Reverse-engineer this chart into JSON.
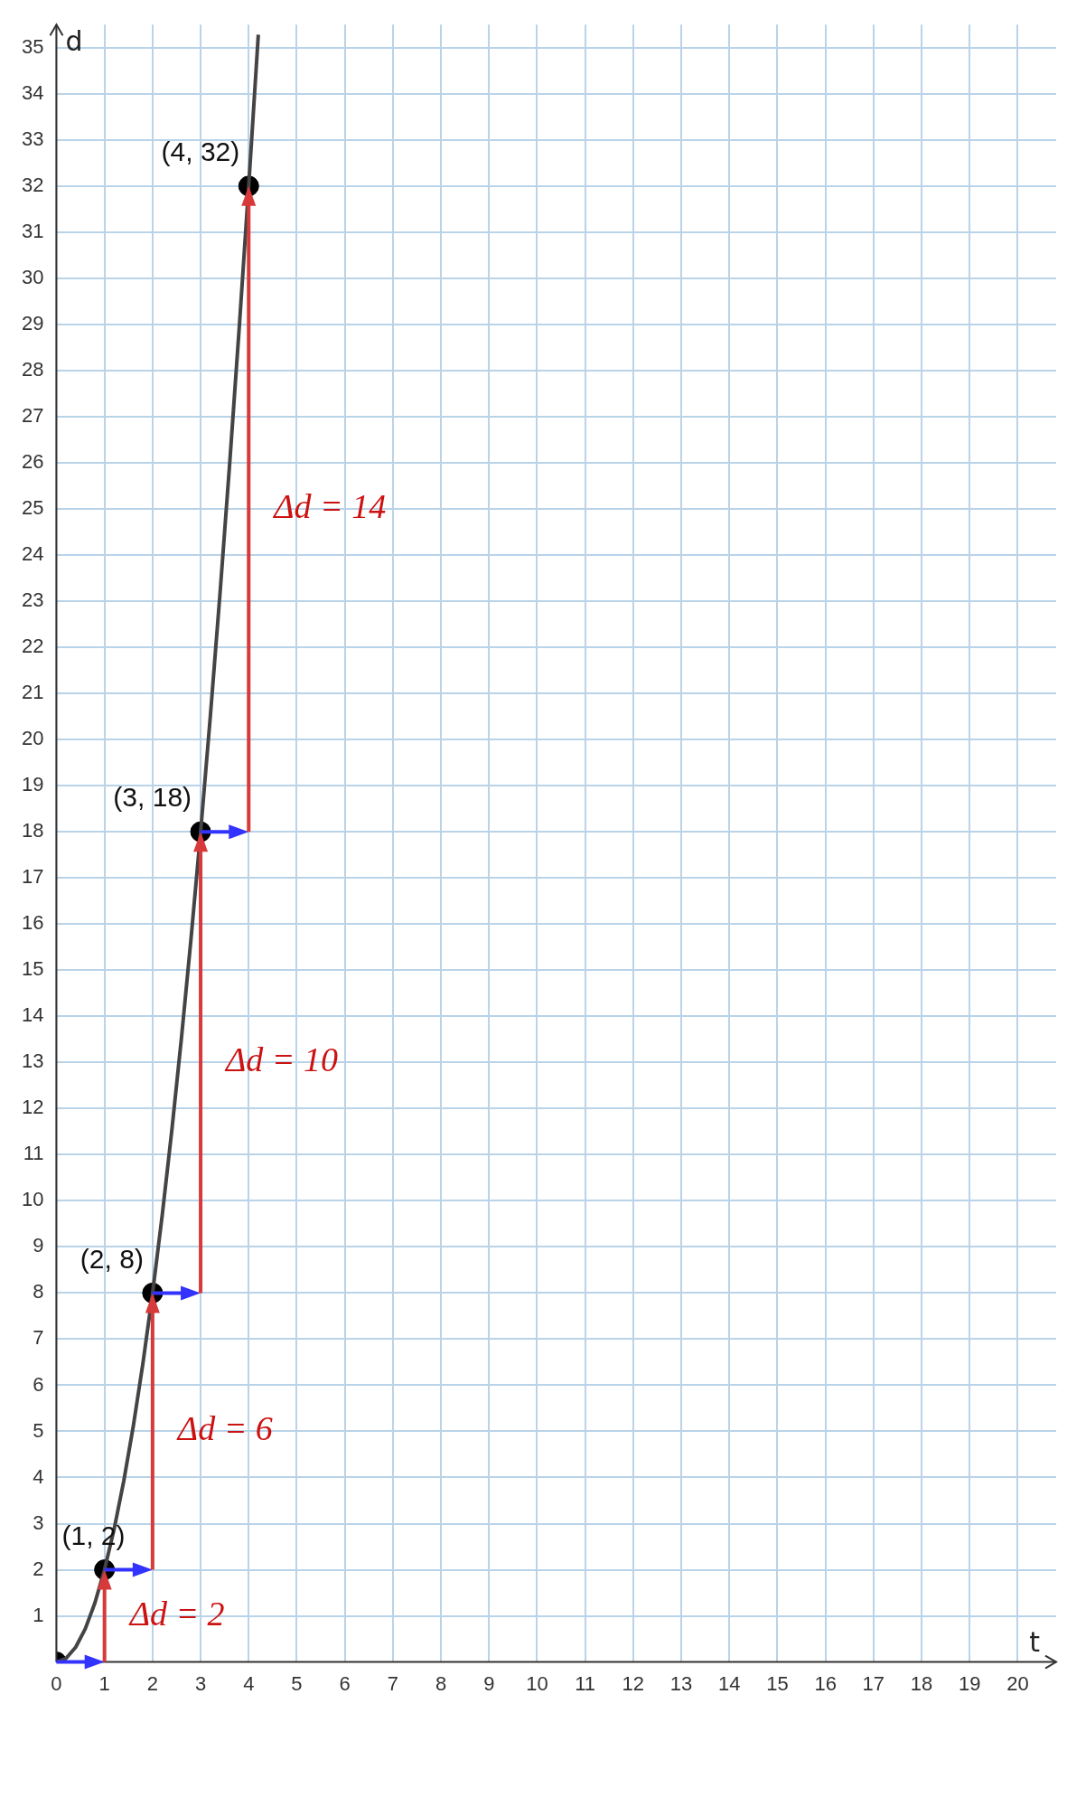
{
  "chart_data": {
    "type": "line",
    "xlabel": "t",
    "ylabel": "d",
    "xlim": [
      0,
      20.8
    ],
    "ylim": [
      0,
      35.5
    ],
    "xticks": [
      0,
      1,
      2,
      3,
      4,
      5,
      6,
      7,
      8,
      9,
      10,
      11,
      12,
      13,
      14,
      15,
      16,
      17,
      18,
      19,
      20
    ],
    "yticks": [
      1,
      2,
      3,
      4,
      5,
      6,
      7,
      8,
      9,
      10,
      11,
      12,
      13,
      14,
      15,
      16,
      17,
      18,
      19,
      20,
      21,
      22,
      23,
      24,
      25,
      26,
      27,
      28,
      29,
      30,
      31,
      32,
      33,
      34,
      35
    ],
    "grid": true,
    "legend": false,
    "series": [
      {
        "color": "#444444",
        "x": [
          0,
          0.2,
          0.4,
          0.6,
          0.8,
          1,
          1.2,
          1.4,
          1.6,
          1.8,
          2,
          2.2,
          2.4,
          2.6,
          2.8,
          3,
          3.2,
          3.4,
          3.6,
          3.8,
          4,
          4.2
        ],
        "values": [
          0,
          0.08,
          0.32,
          0.72,
          1.28,
          2,
          2.88,
          3.92,
          5.12,
          6.48,
          8,
          9.68,
          11.52,
          13.52,
          15.68,
          18,
          20.48,
          23.12,
          25.92,
          28.88,
          32,
          35.28
        ]
      },
      {
        "type": "scatter",
        "color": "#000000",
        "marker": "circle",
        "x": [
          0,
          1,
          2,
          3,
          4
        ],
        "values": [
          0,
          2,
          8,
          18,
          32
        ]
      }
    ],
    "annotations": [
      {
        "text": "(1, 2)",
        "x": 1,
        "y": 2
      },
      {
        "text": "(2, 8)",
        "x": 2,
        "y": 8
      },
      {
        "text": "(3, 18)",
        "x": 3,
        "y": 18
      },
      {
        "text": "(4, 32)",
        "x": 4,
        "y": 32
      },
      {
        "text": "Δd = 2",
        "x": 1,
        "y": 2
      },
      "Δd = 6",
      "Δd = 10",
      "Δd = 14"
    ]
  }
}
